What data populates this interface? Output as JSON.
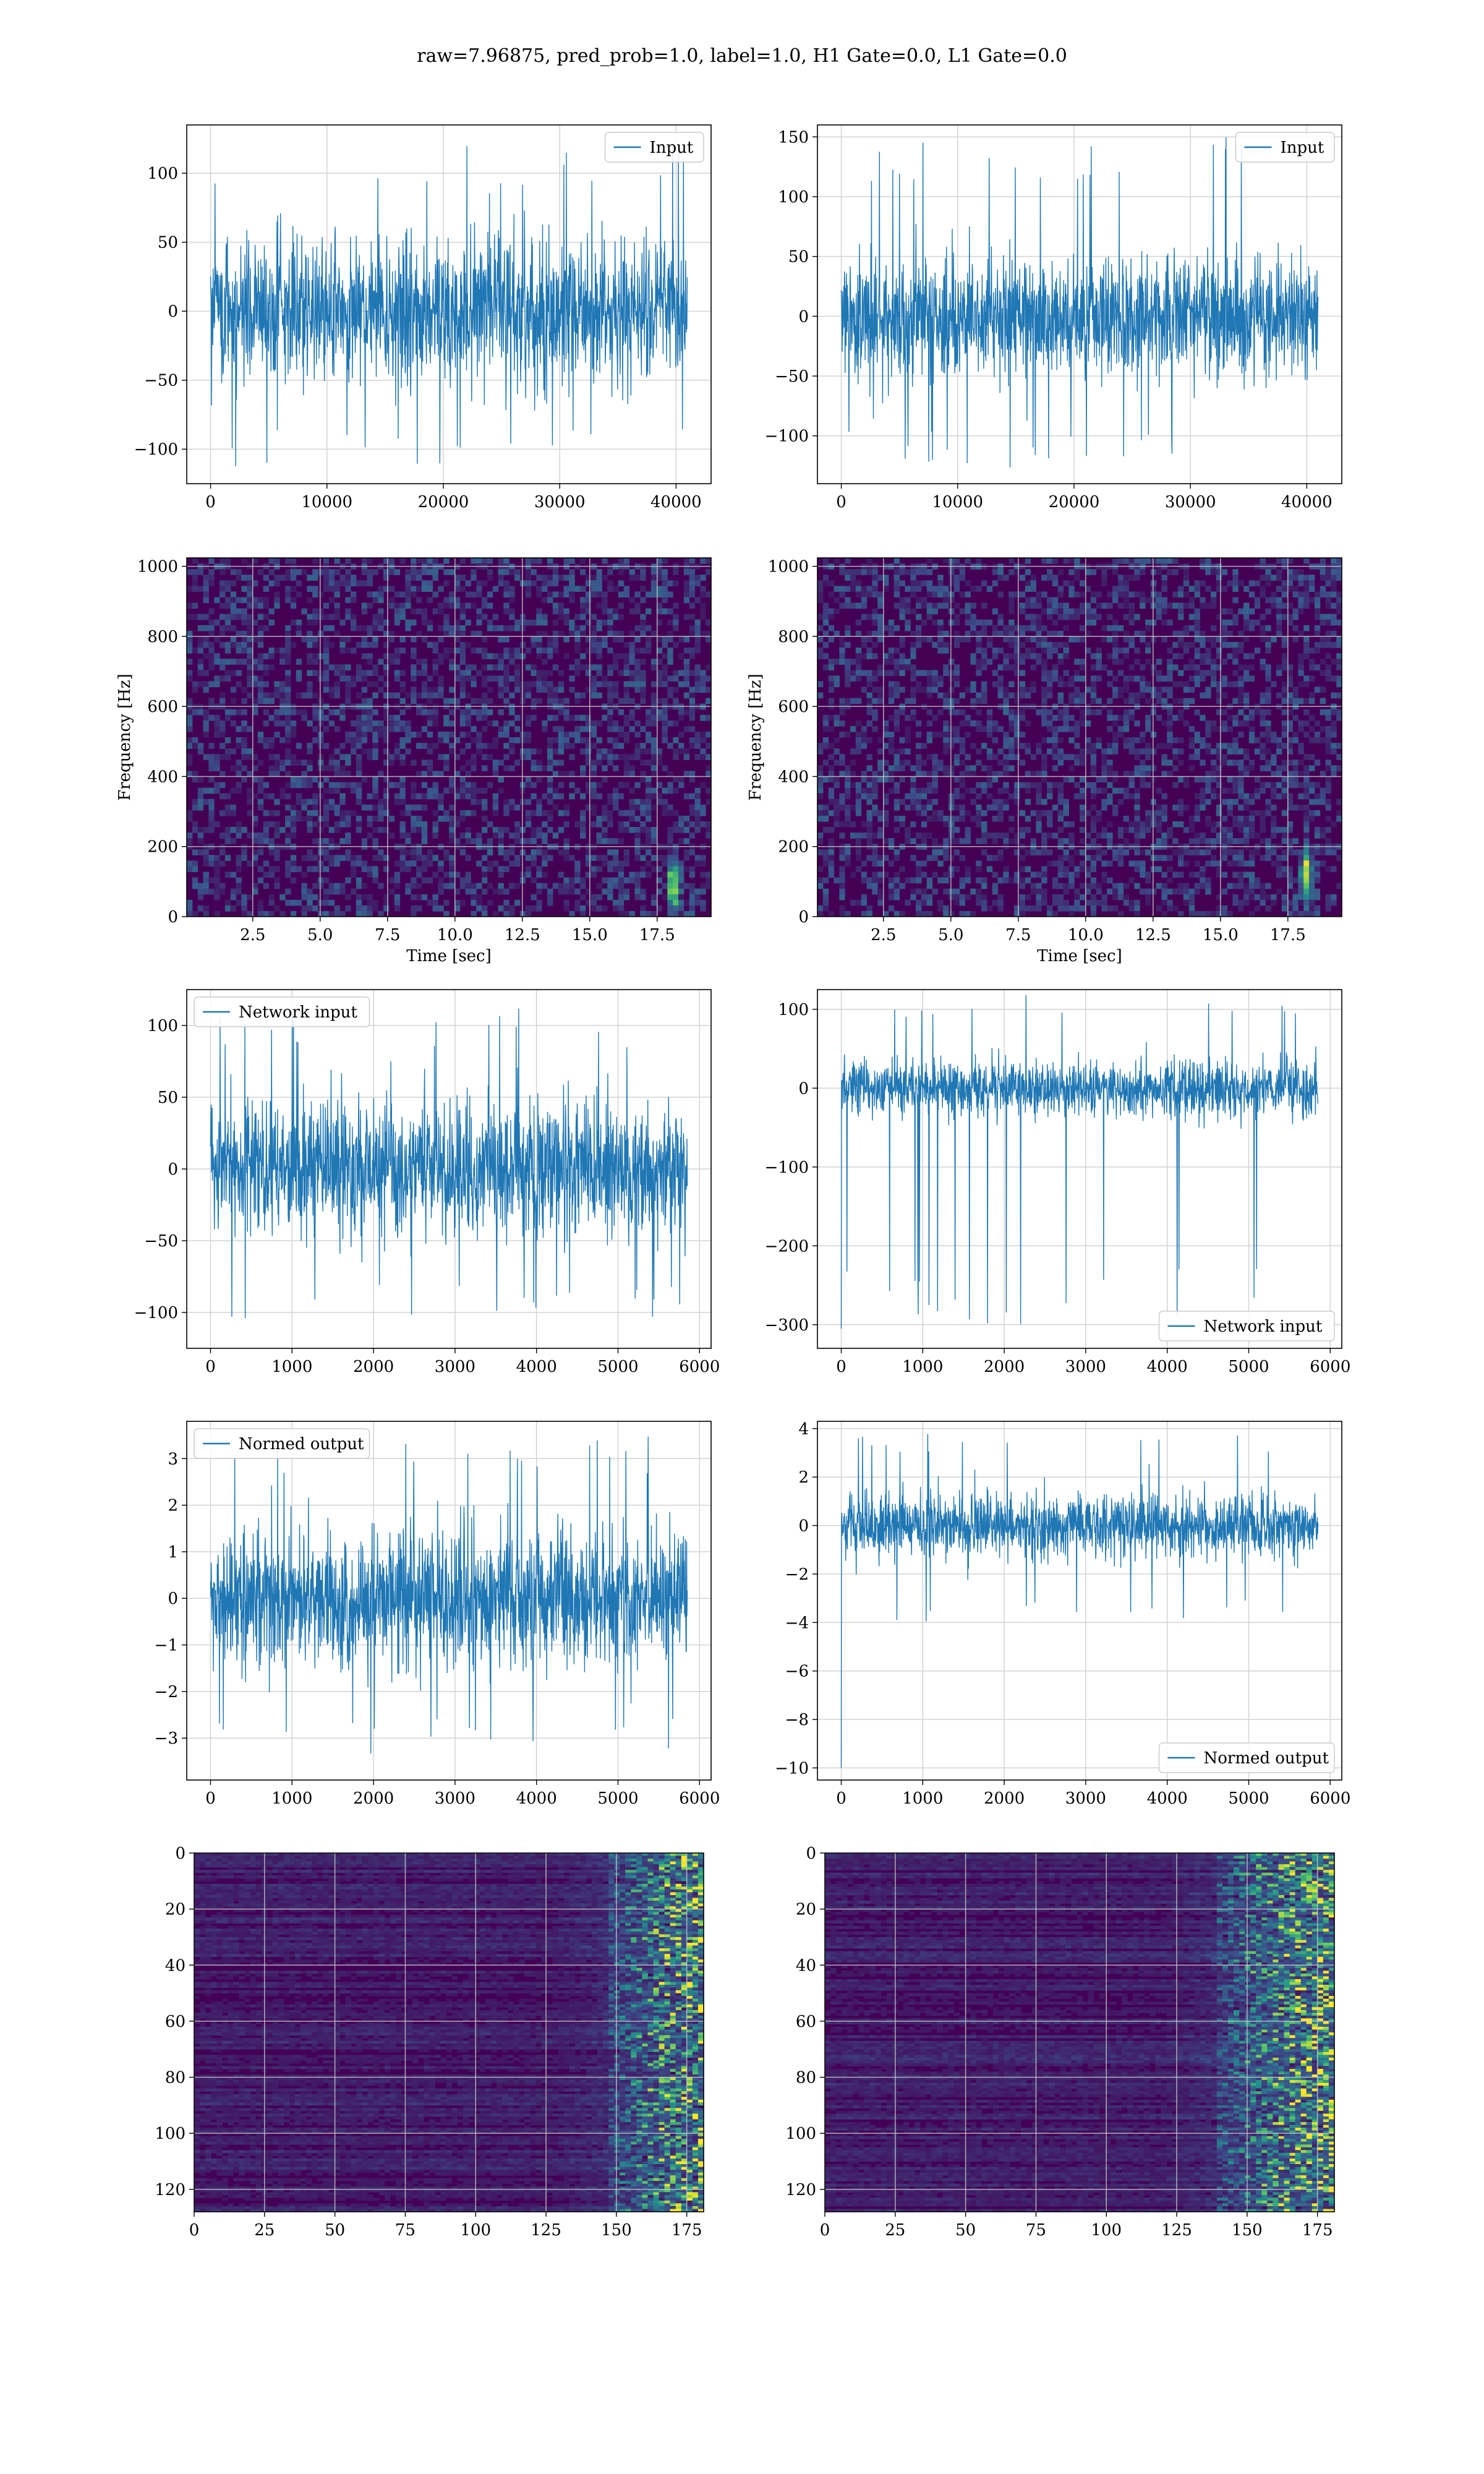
{
  "figure": {
    "suptitle": "raw=7.96875, pred_prob=1.0, label=1.0, H1 Gate=0.0, L1 Gate=0.0"
  },
  "colors": {
    "line": "#1f77b4",
    "grid": "#d3d3d3",
    "viridis_low": "#440154",
    "viridis_mid": "#21918c",
    "viridis_high": "#fde725"
  },
  "chart_data": [
    {
      "id": "input-h1",
      "type": "line",
      "style": "dense-noise",
      "x": {
        "min": 0,
        "max": 40960,
        "ticks": [
          0,
          10000,
          20000,
          30000,
          40000
        ],
        "tick_labels": [
          "0",
          "10000",
          "20000",
          "30000",
          "40000"
        ],
        "label": ""
      },
      "y": {
        "ticks": [
          -100,
          -50,
          0,
          50,
          100
        ],
        "tick_labels": [
          "−100",
          "−50",
          "0",
          "50",
          "100"
        ],
        "label": ""
      },
      "ylim": [
        -125,
        135
      ],
      "xlim": [
        -2048,
        43008
      ],
      "series": [
        {
          "name": "Input",
          "body": 62,
          "spike_max": 120,
          "spike_min": -113
        }
      ],
      "legend": "upper right",
      "grid": true
    },
    {
      "id": "input-l1",
      "type": "line",
      "style": "dense-noise",
      "x": {
        "min": 0,
        "max": 40960,
        "ticks": [
          0,
          10000,
          20000,
          30000,
          40000
        ],
        "tick_labels": [
          "0",
          "10000",
          "20000",
          "30000",
          "40000"
        ],
        "label": ""
      },
      "y": {
        "ticks": [
          -100,
          -50,
          0,
          50,
          100,
          150
        ],
        "tick_labels": [
          "−100",
          "−50",
          "0",
          "50",
          "100",
          "150"
        ],
        "label": ""
      },
      "ylim": [
        -140,
        160
      ],
      "xlim": [
        -2048,
        43008
      ],
      "series": [
        {
          "name": "Input",
          "body": 58,
          "spike_max": 150,
          "spike_min": -128
        }
      ],
      "legend": "upper right",
      "grid": true
    },
    {
      "id": "spectrogram-h1",
      "type": "heatmap",
      "style": "spectrogram",
      "x": {
        "min": 0.05,
        "max": 19.5,
        "ticks": [
          2.5,
          5,
          7.5,
          10,
          12.5,
          15,
          17.5
        ],
        "tick_labels": [
          "2.5",
          "5.0",
          "7.5",
          "10.0",
          "12.5",
          "15.0",
          "17.5"
        ],
        "label": "Time [sec]"
      },
      "y": {
        "min": 0,
        "max": 1024,
        "ticks": [
          0,
          200,
          400,
          600,
          800,
          1000
        ],
        "tick_labels": [
          "0",
          "200",
          "400",
          "600",
          "800",
          "1000"
        ],
        "label": "Frequency [Hz]"
      },
      "hotspots": [
        {
          "t": 18.1,
          "f": 90
        }
      ],
      "grid": true
    },
    {
      "id": "spectrogram-l1",
      "type": "heatmap",
      "style": "spectrogram",
      "x": {
        "min": 0.05,
        "max": 19.5,
        "ticks": [
          2.5,
          5,
          7.5,
          10,
          12.5,
          15,
          17.5
        ],
        "tick_labels": [
          "2.5",
          "5.0",
          "7.5",
          "10.0",
          "12.5",
          "15.0",
          "17.5"
        ],
        "label": "Time [sec]"
      },
      "y": {
        "min": 0,
        "max": 1024,
        "ticks": [
          0,
          200,
          400,
          600,
          800,
          1000
        ],
        "tick_labels": [
          "0",
          "200",
          "400",
          "600",
          "800",
          "1000"
        ],
        "label": "Frequency [Hz]"
      },
      "hotspots": [
        {
          "t": 18.2,
          "f": 120
        }
      ],
      "grid": true
    },
    {
      "id": "network-input-h1",
      "type": "line",
      "style": "dense-noise",
      "x": {
        "min": 0,
        "max": 5850,
        "ticks": [
          0,
          1000,
          2000,
          3000,
          4000,
          5000,
          6000
        ],
        "tick_labels": [
          "0",
          "1000",
          "2000",
          "3000",
          "4000",
          "5000",
          "6000"
        ],
        "label": ""
      },
      "y": {
        "ticks": [
          -100,
          -50,
          0,
          50,
          100
        ],
        "tick_labels": [
          "−100",
          "−50",
          "0",
          "50",
          "100"
        ],
        "label": ""
      },
      "ylim": [
        -125,
        125
      ],
      "xlim": [
        -292,
        6142
      ],
      "series": [
        {
          "name": "Network input",
          "body": 55,
          "spike_max": 112,
          "spike_min": -108
        }
      ],
      "legend": "upper left",
      "grid": true
    },
    {
      "id": "network-input-l1",
      "type": "line",
      "style": "dense-noise",
      "x": {
        "min": 0,
        "max": 5850,
        "ticks": [
          0,
          1000,
          2000,
          3000,
          4000,
          5000,
          6000
        ],
        "tick_labels": [
          "0",
          "1000",
          "2000",
          "3000",
          "4000",
          "5000",
          "6000"
        ],
        "label": ""
      },
      "y": {
        "ticks": [
          -300,
          -200,
          -100,
          0,
          100
        ],
        "tick_labels": [
          "−300",
          "−200",
          "−100",
          "0",
          "100"
        ],
        "label": ""
      },
      "ylim": [
        -330,
        125
      ],
      "xlim": [
        -292,
        6142
      ],
      "series": [
        {
          "name": "Network input",
          "body": 42,
          "spike_max": 118,
          "spike_min": -305,
          "start_spike": -305
        }
      ],
      "legend": "lower right",
      "grid": true
    },
    {
      "id": "normed-output-h1",
      "type": "line",
      "style": "dense-noise",
      "x": {
        "min": 0,
        "max": 5850,
        "ticks": [
          0,
          1000,
          2000,
          3000,
          4000,
          5000,
          6000
        ],
        "tick_labels": [
          "0",
          "1000",
          "2000",
          "3000",
          "4000",
          "5000",
          "6000"
        ],
        "label": ""
      },
      "y": {
        "ticks": [
          -3,
          -2,
          -1,
          0,
          1,
          2,
          3
        ],
        "tick_labels": [
          "−3",
          "−2",
          "−1",
          "0",
          "1",
          "2",
          "3"
        ],
        "label": ""
      },
      "ylim": [
        -3.9,
        3.8
      ],
      "xlim": [
        -292,
        6142
      ],
      "series": [
        {
          "name": "Normed output",
          "body": 1.7,
          "spike_max": 3.5,
          "spike_min": -3.4
        }
      ],
      "legend": "upper left",
      "grid": true
    },
    {
      "id": "normed-output-l1",
      "type": "line",
      "style": "dense-noise",
      "x": {
        "min": 0,
        "max": 5850,
        "ticks": [
          0,
          1000,
          2000,
          3000,
          4000,
          5000,
          6000
        ],
        "tick_labels": [
          "0",
          "1000",
          "2000",
          "3000",
          "4000",
          "5000",
          "6000"
        ],
        "label": ""
      },
      "y": {
        "ticks": [
          -10,
          -8,
          -6,
          -4,
          -2,
          0,
          2,
          4
        ],
        "tick_labels": [
          "−10",
          "−8",
          "−6",
          "−4",
          "−2",
          "0",
          "2",
          "4"
        ],
        "label": ""
      },
      "ylim": [
        -10.5,
        4.3
      ],
      "xlim": [
        -292,
        6142
      ],
      "series": [
        {
          "name": "Normed output",
          "body": 1.5,
          "spike_max": 3.9,
          "spike_min": -4.1,
          "start_spike": -10
        }
      ],
      "legend": "lower right",
      "grid": true
    },
    {
      "id": "feature-map-h1",
      "type": "heatmap",
      "style": "feature-map",
      "x": {
        "min": 0,
        "max": 181,
        "ticks": [
          0,
          25,
          50,
          75,
          100,
          125,
          150,
          175
        ],
        "tick_labels": [
          "0",
          "25",
          "50",
          "75",
          "100",
          "125",
          "150",
          "175"
        ],
        "label": ""
      },
      "y": {
        "min": 0,
        "max": 128,
        "ticks": [
          0,
          20,
          40,
          60,
          80,
          100,
          120
        ],
        "tick_labels": [
          "0",
          "20",
          "40",
          "60",
          "80",
          "100",
          "120"
        ],
        "label": "",
        "inverted": true
      },
      "activation_start": 148,
      "grid": true
    },
    {
      "id": "feature-map-l1",
      "type": "heatmap",
      "style": "feature-map",
      "x": {
        "min": 0,
        "max": 181,
        "ticks": [
          0,
          25,
          50,
          75,
          100,
          125,
          150,
          175
        ],
        "tick_labels": [
          "0",
          "25",
          "50",
          "75",
          "100",
          "125",
          "150",
          "175"
        ],
        "label": ""
      },
      "y": {
        "min": 0,
        "max": 128,
        "ticks": [
          0,
          20,
          40,
          60,
          80,
          100,
          120
        ],
        "tick_labels": [
          "0",
          "20",
          "40",
          "60",
          "80",
          "100",
          "120"
        ],
        "label": "",
        "inverted": true
      },
      "activation_start": 140,
      "grid": true
    }
  ]
}
